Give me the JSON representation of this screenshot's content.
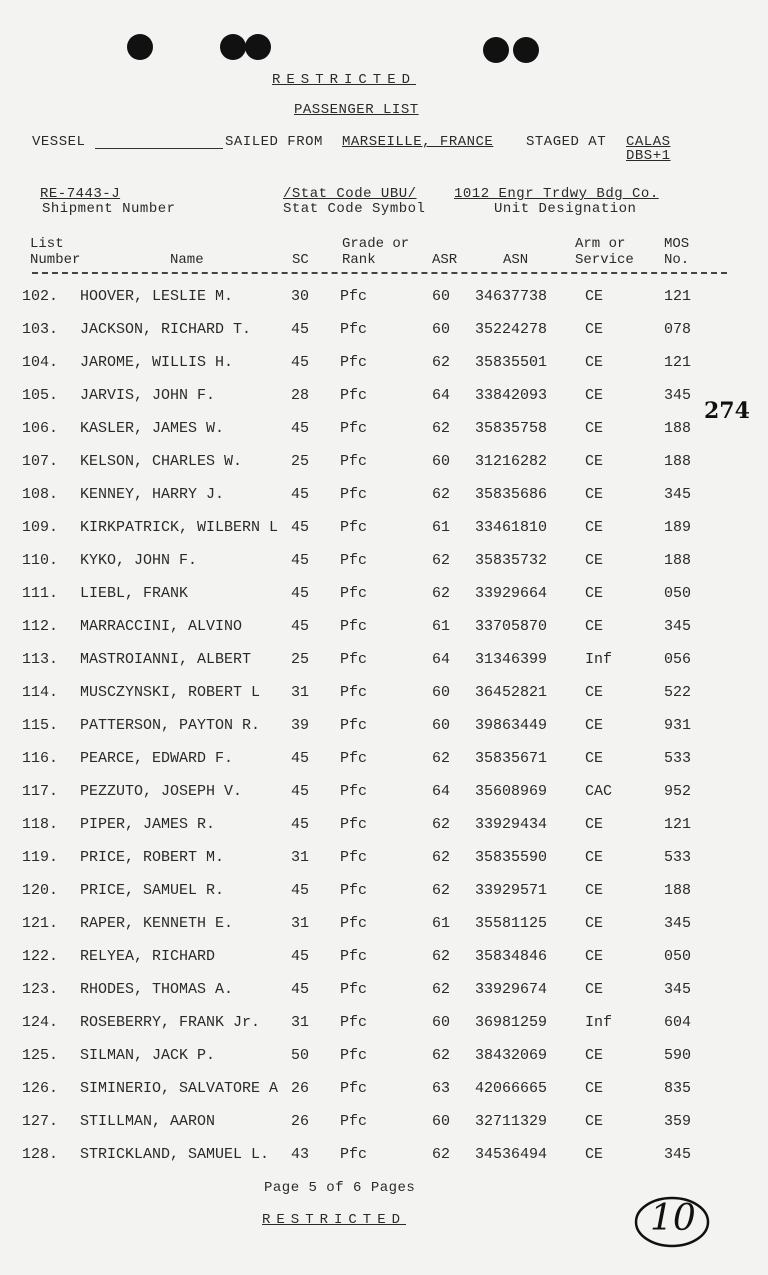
{
  "header": {
    "classification": "RESTRICTED",
    "title": "PASSENGER LIST",
    "vessel_label": "VESSEL",
    "sailed_text": "SAILED FROM",
    "sailed_from": "MARSEILLE, FRANCE",
    "staged_text": "STAGED AT",
    "staged_at": "CALAS",
    "staged_sub": "DBS+1",
    "shipment_number": "RE-7443-J",
    "shipment_label": "Shipment Number",
    "stat_code": "/Stat Code UBU/",
    "stat_label": "Stat Code Symbol",
    "unit": "1012 Engr Trdwy Bdg Co.",
    "unit_label": "Unit Designation"
  },
  "columns": {
    "list": "List Number",
    "name": "Name",
    "sc": "SC",
    "grade": "Grade or Rank",
    "asr": "ASR",
    "asn": "ASN",
    "arm": "Arm or Service",
    "mos": "MOS No."
  },
  "rows": [
    {
      "n": "102.",
      "name": "HOOVER, LESLIE M.",
      "sc": "30",
      "g": "Pfc",
      "asr": "60",
      "asn": "34637738",
      "arm": "CE",
      "mos": "121"
    },
    {
      "n": "103.",
      "name": "JACKSON, RICHARD T.",
      "sc": "45",
      "g": "Pfc",
      "asr": "60",
      "asn": "35224278",
      "arm": "CE",
      "mos": "078"
    },
    {
      "n": "104.",
      "name": "JAROME, WILLIS H.",
      "sc": "45",
      "g": "Pfc",
      "asr": "62",
      "asn": "35835501",
      "arm": "CE",
      "mos": "121"
    },
    {
      "n": "105.",
      "name": "JARVIS, JOHN F.",
      "sc": "28",
      "g": "Pfc",
      "asr": "64",
      "asn": "33842093",
      "arm": "CE",
      "mos": "345"
    },
    {
      "n": "106.",
      "name": "KASLER, JAMES W.",
      "sc": "45",
      "g": "Pfc",
      "asr": "62",
      "asn": "35835758",
      "arm": "CE",
      "mos": "188"
    },
    {
      "n": "107.",
      "name": "KELSON, CHARLES W.",
      "sc": "25",
      "g": "Pfc",
      "asr": "60",
      "asn": "31216282",
      "arm": "CE",
      "mos": "188"
    },
    {
      "n": "108.",
      "name": "KENNEY, HARRY J.",
      "sc": "45",
      "g": "Pfc",
      "asr": "62",
      "asn": "35835686",
      "arm": "CE",
      "mos": "345"
    },
    {
      "n": "109.",
      "name": "KIRKPATRICK, WILBERN L",
      "sc": "45",
      "g": "Pfc",
      "asr": "61",
      "asn": "33461810",
      "arm": "CE",
      "mos": "189"
    },
    {
      "n": "110.",
      "name": "KYKO, JOHN F.",
      "sc": "45",
      "g": "Pfc",
      "asr": "62",
      "asn": "35835732",
      "arm": "CE",
      "mos": "188"
    },
    {
      "n": "111.",
      "name": "LIEBL, FRANK",
      "sc": "45",
      "g": "Pfc",
      "asr": "62",
      "asn": "33929664",
      "arm": "CE",
      "mos": "050"
    },
    {
      "n": "112.",
      "name": "MARRACCINI, ALVINO",
      "sc": "45",
      "g": "Pfc",
      "asr": "61",
      "asn": "33705870",
      "arm": "CE",
      "mos": "345"
    },
    {
      "n": "113.",
      "name": "MASTROIANNI, ALBERT",
      "sc": "25",
      "g": "Pfc",
      "asr": "64",
      "asn": "31346399",
      "arm": "Inf",
      "mos": "056"
    },
    {
      "n": "114.",
      "name": "MUSCZYNSKI, ROBERT L",
      "sc": "31",
      "g": "Pfc",
      "asr": "60",
      "asn": "36452821",
      "arm": "CE",
      "mos": "522"
    },
    {
      "n": "115.",
      "name": "PATTERSON, PAYTON R.",
      "sc": "39",
      "g": "Pfc",
      "asr": "60",
      "asn": "39863449",
      "arm": "CE",
      "mos": "931"
    },
    {
      "n": "116.",
      "name": "PEARCE, EDWARD F.",
      "sc": "45",
      "g": "Pfc",
      "asr": "62",
      "asn": "35835671",
      "arm": "CE",
      "mos": "533"
    },
    {
      "n": "117.",
      "name": "PEZZUTO, JOSEPH V.",
      "sc": "45",
      "g": "Pfc",
      "asr": "64",
      "asn": "35608969",
      "arm": "CAC",
      "mos": "952"
    },
    {
      "n": "118.",
      "name": "PIPER, JAMES R.",
      "sc": "45",
      "g": "Pfc",
      "asr": "62",
      "asn": "33929434",
      "arm": "CE",
      "mos": "121"
    },
    {
      "n": "119.",
      "name": "PRICE, ROBERT M.",
      "sc": "31",
      "g": "Pfc",
      "asr": "62",
      "asn": "35835590",
      "arm": "CE",
      "mos": "533"
    },
    {
      "n": "120.",
      "name": "PRICE, SAMUEL R.",
      "sc": "45",
      "g": "Pfc",
      "asr": "62",
      "asn": "33929571",
      "arm": "CE",
      "mos": "188"
    },
    {
      "n": "121.",
      "name": "RAPER, KENNETH E.",
      "sc": "31",
      "g": "Pfc",
      "asr": "61",
      "asn": "35581125",
      "arm": "CE",
      "mos": "345"
    },
    {
      "n": "122.",
      "name": "RELYEA, RICHARD",
      "sc": "45",
      "g": "Pfc",
      "asr": "62",
      "asn": "35834846",
      "arm": "CE",
      "mos": "050"
    },
    {
      "n": "123.",
      "name": "RHODES, THOMAS A.",
      "sc": "45",
      "g": "Pfc",
      "asr": "62",
      "asn": "33929674",
      "arm": "CE",
      "mos": "345"
    },
    {
      "n": "124.",
      "name": "ROSEBERRY, FRANK Jr.",
      "sc": "31",
      "g": "Pfc",
      "asr": "60",
      "asn": "36981259",
      "arm": "Inf",
      "mos": "604"
    },
    {
      "n": "125.",
      "name": "SILMAN, JACK P.",
      "sc": "50",
      "g": "Pfc",
      "asr": "62",
      "asn": "38432069",
      "arm": "CE",
      "mos": "590"
    },
    {
      "n": "126.",
      "name": "SIMINERIO, SALVATORE A",
      "sc": "26",
      "g": "Pfc",
      "asr": "63",
      "asn": "42066665",
      "arm": "CE",
      "mos": "835"
    },
    {
      "n": "127.",
      "name": "STILLMAN, AARON",
      "sc": "26",
      "g": "Pfc",
      "asr": "60",
      "asn": "32711329",
      "arm": "CE",
      "mos": "359"
    },
    {
      "n": "128.",
      "name": "STRICKLAND, SAMUEL L.",
      "sc": "43",
      "g": "Pfc",
      "asr": "62",
      "asn": "34536494",
      "arm": "CE",
      "mos": "345"
    }
  ],
  "footer": {
    "page_text": "Page 5 of 6 Pages",
    "classification": "RESTRICTED"
  },
  "stamp": "274",
  "handwritten": "10"
}
